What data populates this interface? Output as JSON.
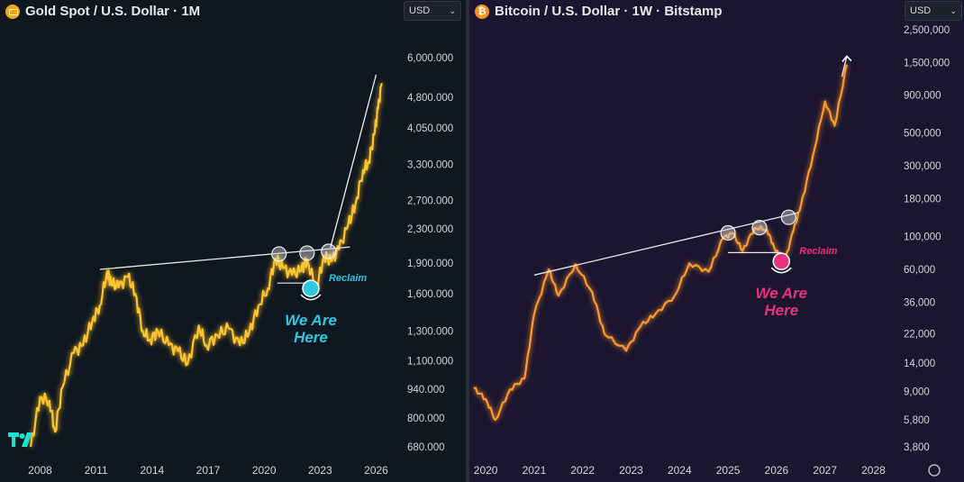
{
  "gold": {
    "title": "Gold Spot / U.S. Dollar · 1M",
    "currency": "USD",
    "logo_icon": "gold-bars-icon",
    "reclaim_label": "Reclaim",
    "here_line1": "We Are",
    "here_line2": "Here",
    "accent": "#ffc52e",
    "annotation_color": "#2ec9e0"
  },
  "btc": {
    "title": "Bitcoin / U.S. Dollar · 1W · Bitstamp",
    "currency": "USD",
    "logo_icon": "bitcoin-icon",
    "reclaim_label": "Reclaim",
    "here_line1": "We Are",
    "here_line2": "Here",
    "accent": "#ff9a2e",
    "annotation_color": "#e8327c"
  },
  "chart_data": [
    {
      "type": "line",
      "title": "Gold Spot / U.S. Dollar · 1M",
      "scale": "log",
      "y_ticks": [
        "6,000.000",
        "4,800.000",
        "4,050.000",
        "3,300.000",
        "2,700.000",
        "2,300.000",
        "1,900.000",
        "1,600.000",
        "1,300.000",
        "1,100.000",
        "940.000",
        "800.000",
        "680.000"
      ],
      "x_ticks": [
        "2008",
        "2011",
        "2014",
        "2017",
        "2020",
        "2023",
        "2026"
      ],
      "ylim": [
        650,
        6500
      ],
      "xlim": [
        2007.3,
        2026.7
      ],
      "x": [
        2007.5,
        2008.0,
        2008.5,
        2008.8,
        2009.2,
        2009.8,
        2010.3,
        2010.8,
        2011.2,
        2011.6,
        2011.8,
        2012.2,
        2012.7,
        2013.1,
        2013.5,
        2013.9,
        2014.3,
        2014.9,
        2015.4,
        2015.9,
        2016.5,
        2016.9,
        2017.5,
        2018.1,
        2018.7,
        2019.2,
        2019.7,
        2020.2,
        2020.6,
        2021.0,
        2021.5,
        2022.0,
        2022.3,
        2022.8,
        2023.2,
        2023.6,
        2024.0,
        2024.5,
        2024.9,
        2025.3,
        2025.6,
        2025.9,
        2026.1,
        2026.3
      ],
      "values": [
        680,
        900,
        880,
        740,
        950,
        1150,
        1200,
        1380,
        1500,
        1820,
        1700,
        1660,
        1760,
        1600,
        1300,
        1240,
        1300,
        1200,
        1160,
        1080,
        1340,
        1200,
        1270,
        1320,
        1200,
        1290,
        1500,
        1650,
        1950,
        1850,
        1780,
        1830,
        1940,
        1640,
        1980,
        1920,
        2050,
        2350,
        2650,
        3200,
        3350,
        3900,
        4500,
        5200
      ],
      "series": [
        {
          "name": "XAUUSD",
          "color": "#ffc52e"
        }
      ]
    },
    {
      "type": "line",
      "title": "Bitcoin / U.S. Dollar · 1W · Bitstamp",
      "scale": "log",
      "y_ticks": [
        "2,500,000",
        "1,500,000",
        "900,000",
        "500,000",
        "300,000",
        "180,000",
        "100,000",
        "60,000",
        "36,000",
        "22,000",
        "14,000",
        "9,000",
        "5,800",
        "3,800"
      ],
      "x_ticks": [
        "2020",
        "2021",
        "2022",
        "2023",
        "2024",
        "2025",
        "2026",
        "2027",
        "2028"
      ],
      "ylim": [
        3500,
        2600000
      ],
      "xlim": [
        2019.7,
        2028.4
      ],
      "x": [
        2019.75,
        2020.0,
        2020.2,
        2020.5,
        2020.8,
        2021.0,
        2021.3,
        2021.5,
        2021.85,
        2022.2,
        2022.45,
        2022.9,
        2023.2,
        2023.5,
        2023.9,
        2024.2,
        2024.6,
        2024.9,
        2025.1,
        2025.3,
        2025.55,
        2025.8,
        2025.95,
        2026.15,
        2026.35,
        2026.5,
        2026.75,
        2027.0,
        2027.2,
        2027.45
      ],
      "values": [
        9500,
        8000,
        5800,
        9300,
        11000,
        30000,
        60000,
        40000,
        65000,
        42000,
        22000,
        17000,
        25000,
        30000,
        40000,
        66000,
        58000,
        98000,
        105000,
        80000,
        115000,
        112000,
        85000,
        65000,
        110000,
        160000,
        350000,
        820000,
        560000,
        1450000
      ],
      "series": [
        {
          "name": "BTCUSD",
          "color": "#ff9a2e"
        }
      ]
    }
  ]
}
